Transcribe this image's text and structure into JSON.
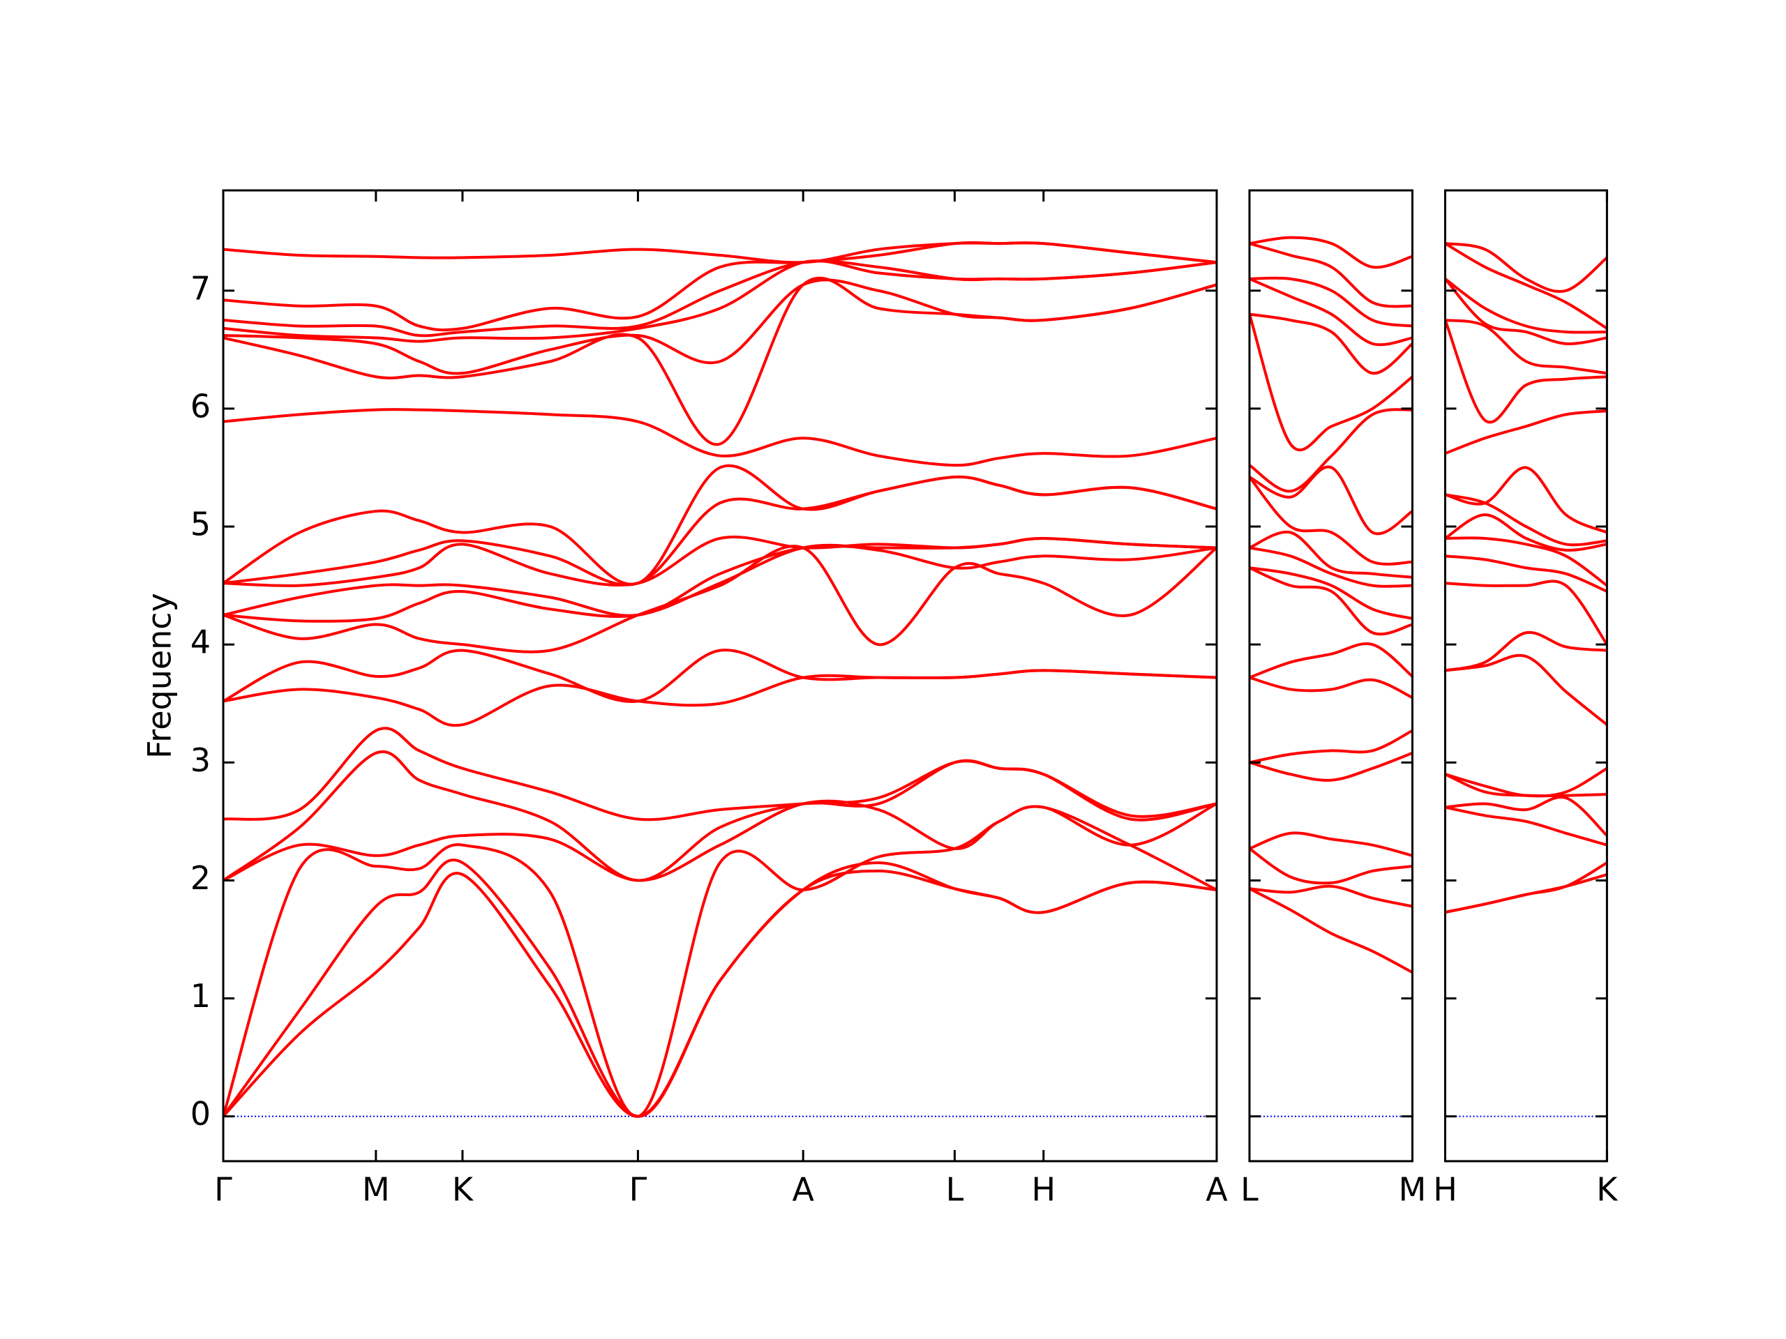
{
  "chart_data": {
    "type": "line",
    "ylabel": "Frequency",
    "color": "#ff0000",
    "ylim": [
      -0.38,
      7.85
    ],
    "yticks": [
      0,
      1,
      2,
      3,
      4,
      5,
      6,
      7
    ],
    "zero_line": {
      "value": 0,
      "color": "#0000ff"
    },
    "panels": [
      {
        "xlim": [
          0,
          8.72
        ],
        "xticks": [
          {
            "value": 0,
            "label": "Γ"
          },
          {
            "value": 1.34,
            "label": "M"
          },
          {
            "value": 2.1,
            "label": "K"
          },
          {
            "value": 3.64,
            "label": "Γ"
          },
          {
            "value": 5.09,
            "label": "A"
          },
          {
            "value": 6.42,
            "label": "L"
          },
          {
            "value": 7.2,
            "label": "H"
          },
          {
            "value": 8.72,
            "label": "A"
          }
        ],
        "x": [
          0,
          0.67,
          1.34,
          1.72,
          2.1,
          2.87,
          3.64,
          4.36,
          5.09,
          5.75,
          6.42,
          6.81,
          7.2,
          7.96,
          8.72
        ],
        "series": [
          {
            "values": [
              0,
              0.7,
              1.22,
              1.6,
              2.05,
              1.1,
              0,
              1.15,
              1.92,
              2.08,
              1.93,
              1.85,
              1.73,
              1.98,
              1.92
            ]
          },
          {
            "values": [
              0,
              0.9,
              1.78,
              1.9,
              2.15,
              1.25,
              0,
              1.15,
              1.92,
              2.15,
              1.93,
              1.85,
              1.73,
              1.98,
              1.92
            ]
          },
          {
            "values": [
              0,
              2.1,
              2.12,
              2.1,
              2.3,
              1.9,
              0,
              2.15,
              1.92,
              2.2,
              2.27,
              2.5,
              2.62,
              2.3,
              1.92
            ]
          },
          {
            "values": [
              2.0,
              2.3,
              2.21,
              2.3,
              2.38,
              2.35,
              2.0,
              2.3,
              2.65,
              2.6,
              2.27,
              2.5,
              2.62,
              2.3,
              2.65
            ]
          },
          {
            "values": [
              2.0,
              2.45,
              3.08,
              2.85,
              2.73,
              2.5,
              2.0,
              2.45,
              2.65,
              2.65,
              3.0,
              2.95,
              2.9,
              2.52,
              2.65
            ]
          },
          {
            "values": [
              2.52,
              2.6,
              3.27,
              3.1,
              2.95,
              2.75,
              2.52,
              2.6,
              2.65,
              2.7,
              3.0,
              2.95,
              2.9,
              2.55,
              2.65
            ]
          },
          {
            "values": [
              3.52,
              3.62,
              3.55,
              3.45,
              3.32,
              3.65,
              3.52,
              3.5,
              3.72,
              3.72,
              3.72,
              3.75,
              3.78,
              3.75,
              3.72
            ]
          },
          {
            "values": [
              3.52,
              3.85,
              3.73,
              3.8,
              3.95,
              3.75,
              3.52,
              3.95,
              3.72,
              3.72,
              3.72,
              3.75,
              3.78,
              3.75,
              3.72
            ]
          },
          {
            "values": [
              4.25,
              4.05,
              4.17,
              4.05,
              4.0,
              3.95,
              4.25,
              4.5,
              4.82,
              4.0,
              4.65,
              4.6,
              4.52,
              4.25,
              4.82
            ]
          },
          {
            "values": [
              4.25,
              4.2,
              4.22,
              4.35,
              4.45,
              4.3,
              4.25,
              4.52,
              4.82,
              4.8,
              4.65,
              4.7,
              4.75,
              4.72,
              4.82
            ]
          },
          {
            "values": [
              4.25,
              4.4,
              4.5,
              4.5,
              4.5,
              4.4,
              4.25,
              4.6,
              4.82,
              4.82,
              4.82,
              4.85,
              4.9,
              4.85,
              4.82
            ]
          },
          {
            "values": [
              4.52,
              4.5,
              4.57,
              4.65,
              4.85,
              4.6,
              4.52,
              4.9,
              4.82,
              4.85,
              4.82,
              4.85,
              4.9,
              4.85,
              4.82
            ]
          },
          {
            "values": [
              4.52,
              4.6,
              4.7,
              4.8,
              4.88,
              4.75,
              4.52,
              5.2,
              5.15,
              5.3,
              5.42,
              5.35,
              5.27,
              5.33,
              5.15
            ]
          },
          {
            "values": [
              4.52,
              4.95,
              5.13,
              5.05,
              4.95,
              5.0,
              4.52,
              5.5,
              5.15,
              5.3,
              5.42,
              5.35,
              5.27,
              5.33,
              5.15
            ]
          },
          {
            "values": [
              5.89,
              5.95,
              5.99,
              5.99,
              5.98,
              5.95,
              5.89,
              5.6,
              5.75,
              5.6,
              5.52,
              5.58,
              5.62,
              5.6,
              5.75
            ]
          },
          {
            "values": [
              6.6,
              6.45,
              6.27,
              6.28,
              6.27,
              6.4,
              6.6,
              5.7,
              7.05,
              6.85,
              6.8,
              6.77,
              6.75,
              6.85,
              7.05
            ]
          },
          {
            "values": [
              6.62,
              6.6,
              6.55,
              6.4,
              6.3,
              6.5,
              6.62,
              6.4,
              7.05,
              7.0,
              6.8,
              6.77,
              6.75,
              6.85,
              7.05
            ]
          },
          {
            "values": [
              6.68,
              6.62,
              6.6,
              6.57,
              6.6,
              6.6,
              6.68,
              6.85,
              7.24,
              7.15,
              7.1,
              7.1,
              7.1,
              7.15,
              7.24
            ]
          },
          {
            "values": [
              6.75,
              6.7,
              6.7,
              6.62,
              6.65,
              6.7,
              6.7,
              7.0,
              7.24,
              7.2,
              7.1,
              7.1,
              7.1,
              7.15,
              7.24
            ]
          },
          {
            "values": [
              6.92,
              6.87,
              6.87,
              6.7,
              6.68,
              6.85,
              6.78,
              7.2,
              7.24,
              7.3,
              7.4,
              7.4,
              7.4,
              7.32,
              7.24
            ]
          },
          {
            "values": [
              7.35,
              7.3,
              7.29,
              7.28,
              7.28,
              7.3,
              7.35,
              7.3,
              7.24,
              7.35,
              7.4,
              7.4,
              7.4,
              7.32,
              7.24
            ]
          }
        ]
      },
      {
        "xlim": [
          8.72,
          10.15
        ],
        "xticks": [
          {
            "value": 8.72,
            "label": "L"
          },
          {
            "value": 10.15,
            "label": "M"
          }
        ],
        "x": [
          8.72,
          9.08,
          9.44,
          9.8,
          10.15
        ],
        "series": [
          {
            "values": [
              1.93,
              1.75,
              1.55,
              1.4,
              1.22
            ]
          },
          {
            "values": [
              1.93,
              1.9,
              1.95,
              1.85,
              1.78
            ]
          },
          {
            "values": [
              2.27,
              2.03,
              1.98,
              2.08,
              2.12
            ]
          },
          {
            "values": [
              2.27,
              2.4,
              2.35,
              2.3,
              2.21
            ]
          },
          {
            "values": [
              3.0,
              2.9,
              2.85,
              2.95,
              3.08
            ]
          },
          {
            "values": [
              3.0,
              3.07,
              3.1,
              3.1,
              3.27
            ]
          },
          {
            "values": [
              3.72,
              3.62,
              3.62,
              3.7,
              3.55
            ]
          },
          {
            "values": [
              3.72,
              3.85,
              3.92,
              4.0,
              3.73
            ]
          },
          {
            "values": [
              4.65,
              4.5,
              4.45,
              4.1,
              4.17
            ]
          },
          {
            "values": [
              4.65,
              4.6,
              4.5,
              4.3,
              4.22
            ]
          },
          {
            "values": [
              4.82,
              4.75,
              4.6,
              4.5,
              4.5
            ]
          },
          {
            "values": [
              4.82,
              4.95,
              4.65,
              4.6,
              4.57
            ]
          },
          {
            "values": [
              5.42,
              5.0,
              4.95,
              4.7,
              4.7
            ]
          },
          {
            "values": [
              5.42,
              5.25,
              5.5,
              4.95,
              5.13
            ]
          },
          {
            "values": [
              5.52,
              5.3,
              5.6,
              5.95,
              5.99
            ]
          },
          {
            "values": [
              6.8,
              5.7,
              5.85,
              6.0,
              6.27
            ]
          },
          {
            "values": [
              6.8,
              6.75,
              6.65,
              6.3,
              6.55
            ]
          },
          {
            "values": [
              7.1,
              6.95,
              6.8,
              6.55,
              6.6
            ]
          },
          {
            "values": [
              7.1,
              7.1,
              7.0,
              6.75,
              6.7
            ]
          },
          {
            "values": [
              7.4,
              7.3,
              7.2,
              6.9,
              6.87
            ]
          },
          {
            "values": [
              7.4,
              7.45,
              7.4,
              7.2,
              7.29
            ]
          }
        ]
      },
      {
        "xlim": [
          10.15,
          11.57
        ],
        "xticks": [
          {
            "value": 10.15,
            "label": "H"
          },
          {
            "value": 11.57,
            "label": "K"
          }
        ],
        "x": [
          10.15,
          10.5,
          10.86,
          11.21,
          11.57
        ],
        "series": [
          {
            "values": [
              1.73,
              1.8,
              1.88,
              1.95,
              2.05
            ]
          },
          {
            "values": [
              1.73,
              1.8,
              1.88,
              1.95,
              2.15
            ]
          },
          {
            "values": [
              2.62,
              2.55,
              2.5,
              2.4,
              2.3
            ]
          },
          {
            "values": [
              2.62,
              2.65,
              2.6,
              2.7,
              2.38
            ]
          },
          {
            "values": [
              2.9,
              2.75,
              2.72,
              2.72,
              2.73
            ]
          },
          {
            "values": [
              2.9,
              2.8,
              2.72,
              2.75,
              2.95
            ]
          },
          {
            "values": [
              3.78,
              3.82,
              3.9,
              3.6,
              3.32
            ]
          },
          {
            "values": [
              3.78,
              3.85,
              4.1,
              3.98,
              3.95
            ]
          },
          {
            "values": [
              4.52,
              4.5,
              4.5,
              4.5,
              4.0
            ]
          },
          {
            "values": [
              4.75,
              4.72,
              4.65,
              4.6,
              4.45
            ]
          },
          {
            "values": [
              4.9,
              4.9,
              4.85,
              4.75,
              4.5
            ]
          },
          {
            "values": [
              4.9,
              5.1,
              4.9,
              4.8,
              4.85
            ]
          },
          {
            "values": [
              5.27,
              5.2,
              5.0,
              4.85,
              4.88
            ]
          },
          {
            "values": [
              5.27,
              5.2,
              5.5,
              5.1,
              4.95
            ]
          },
          {
            "values": [
              5.62,
              5.75,
              5.85,
              5.95,
              5.98
            ]
          },
          {
            "values": [
              6.75,
              5.9,
              6.2,
              6.25,
              6.27
            ]
          },
          {
            "values": [
              6.75,
              6.7,
              6.4,
              6.35,
              6.3
            ]
          },
          {
            "values": [
              7.1,
              6.72,
              6.65,
              6.55,
              6.6
            ]
          },
          {
            "values": [
              7.1,
              6.85,
              6.7,
              6.65,
              6.65
            ]
          },
          {
            "values": [
              7.4,
              7.2,
              7.05,
              6.9,
              6.68
            ]
          },
          {
            "values": [
              7.4,
              7.35,
              7.1,
              7.0,
              7.28
            ]
          }
        ]
      }
    ]
  }
}
